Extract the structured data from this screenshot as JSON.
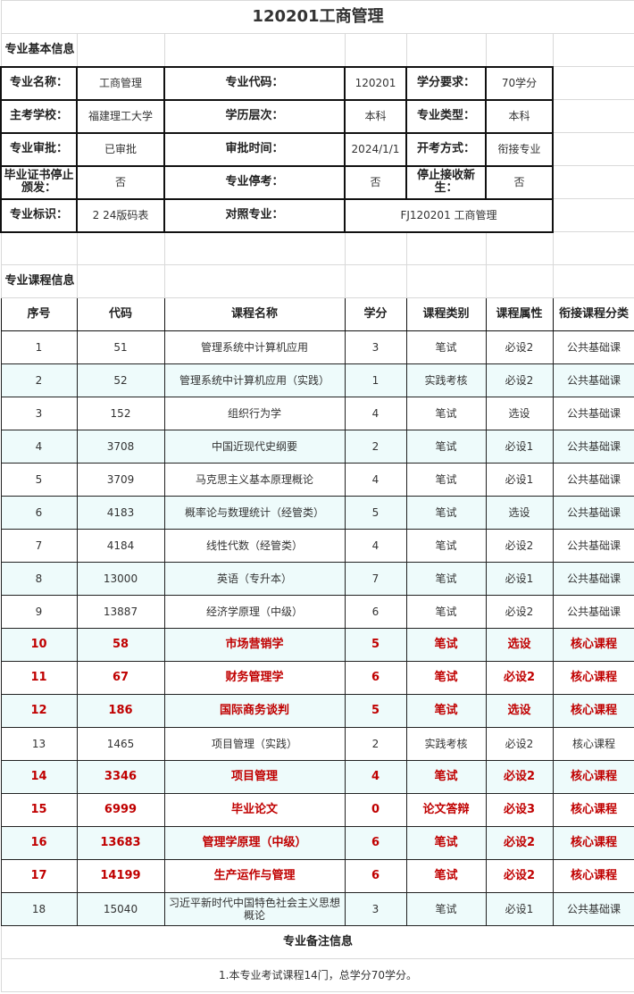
{
  "title": "120201工商管理",
  "basic": {
    "section": "专业基本信息",
    "rows": [
      [
        {
          "l": "专业名称：",
          "v": "工商管理"
        },
        {
          "l": "专业代码：",
          "v": "120201"
        },
        {
          "l": "学分要求：",
          "v": "70学分"
        }
      ],
      [
        {
          "l": "主考学校：",
          "v": "福建理工大学"
        },
        {
          "l": "学历层次：",
          "v": "本科"
        },
        {
          "l": "专业类型：",
          "v": "本科"
        }
      ],
      [
        {
          "l": "专业审批：",
          "v": "已审批"
        },
        {
          "l": "审批时间：",
          "v": "2024/1/1"
        },
        {
          "l": "开考方式：",
          "v": "衔接专业"
        }
      ],
      [
        {
          "l": "毕业证书停止颁发：",
          "v": "否"
        },
        {
          "l": "专业停考：",
          "v": "否"
        },
        {
          "l": "停止接收新生：",
          "v": "否"
        }
      ]
    ],
    "last": {
      "l1": "专业标识：",
      "v1": "2 24版码表",
      "l2": "对照专业：",
      "v2": "FJ120201 工商管理"
    }
  },
  "courses": {
    "section": "专业课程信息",
    "headers": [
      "序号",
      "代码",
      "课程名称",
      "学分",
      "课程类别",
      "课程属性",
      "衔接课程分类"
    ],
    "rows": [
      {
        "c": [
          "1",
          "51",
          "管理系统中计算机应用",
          "3",
          "笔试",
          "必设2",
          "公共基础课"
        ],
        "core": false
      },
      {
        "c": [
          "2",
          "52",
          "管理系统中计算机应用（实践）",
          "1",
          "实践考核",
          "必设2",
          "公共基础课"
        ],
        "core": false
      },
      {
        "c": [
          "3",
          "152",
          "组织行为学",
          "4",
          "笔试",
          "选设",
          "公共基础课"
        ],
        "core": false
      },
      {
        "c": [
          "4",
          "3708",
          "中国近现代史纲要",
          "2",
          "笔试",
          "必设1",
          "公共基础课"
        ],
        "core": false
      },
      {
        "c": [
          "5",
          "3709",
          "马克思主义基本原理概论",
          "4",
          "笔试",
          "必设1",
          "公共基础课"
        ],
        "core": false
      },
      {
        "c": [
          "6",
          "4183",
          "概率论与数理统计（经管类）",
          "5",
          "笔试",
          "选设",
          "公共基础课"
        ],
        "core": false
      },
      {
        "c": [
          "7",
          "4184",
          "线性代数（经管类）",
          "4",
          "笔试",
          "必设2",
          "公共基础课"
        ],
        "core": false
      },
      {
        "c": [
          "8",
          "13000",
          "英语（专升本）",
          "7",
          "笔试",
          "必设1",
          "公共基础课"
        ],
        "core": false
      },
      {
        "c": [
          "9",
          "13887",
          "经济学原理（中级）",
          "6",
          "笔试",
          "必设2",
          "公共基础课"
        ],
        "core": false
      },
      {
        "c": [
          "10",
          "58",
          "市场营销学",
          "5",
          "笔试",
          "选设",
          "核心课程"
        ],
        "core": true
      },
      {
        "c": [
          "11",
          "67",
          "财务管理学",
          "6",
          "笔试",
          "必设2",
          "核心课程"
        ],
        "core": true
      },
      {
        "c": [
          "12",
          "186",
          "国际商务谈判",
          "5",
          "笔试",
          "选设",
          "核心课程"
        ],
        "core": true
      },
      {
        "c": [
          "13",
          "1465",
          "项目管理（实践）",
          "2",
          "实践考核",
          "必设2",
          "核心课程"
        ],
        "core": false
      },
      {
        "c": [
          "14",
          "3346",
          "项目管理",
          "4",
          "笔试",
          "必设2",
          "核心课程"
        ],
        "core": true
      },
      {
        "c": [
          "15",
          "6999",
          "毕业论文",
          "0",
          "论文答辩",
          "必设3",
          "核心课程"
        ],
        "core": true
      },
      {
        "c": [
          "16",
          "13683",
          "管理学原理（中级）",
          "6",
          "笔试",
          "必设2",
          "核心课程"
        ],
        "core": true
      },
      {
        "c": [
          "17",
          "14199",
          "生产运作与管理",
          "6",
          "笔试",
          "必设2",
          "核心课程"
        ],
        "core": true
      },
      {
        "c": [
          "18",
          "15040",
          "习近平新时代中国特色社会主义思想概论",
          "3",
          "笔试",
          "必设1",
          "公共基础课"
        ],
        "core": false
      }
    ]
  },
  "notes": {
    "section": "专业备注信息",
    "text": "1.本专业考试课程14门，总学分70学分。"
  },
  "colors": {
    "core": "#c00000",
    "alt_row": "#eefbfb"
  }
}
